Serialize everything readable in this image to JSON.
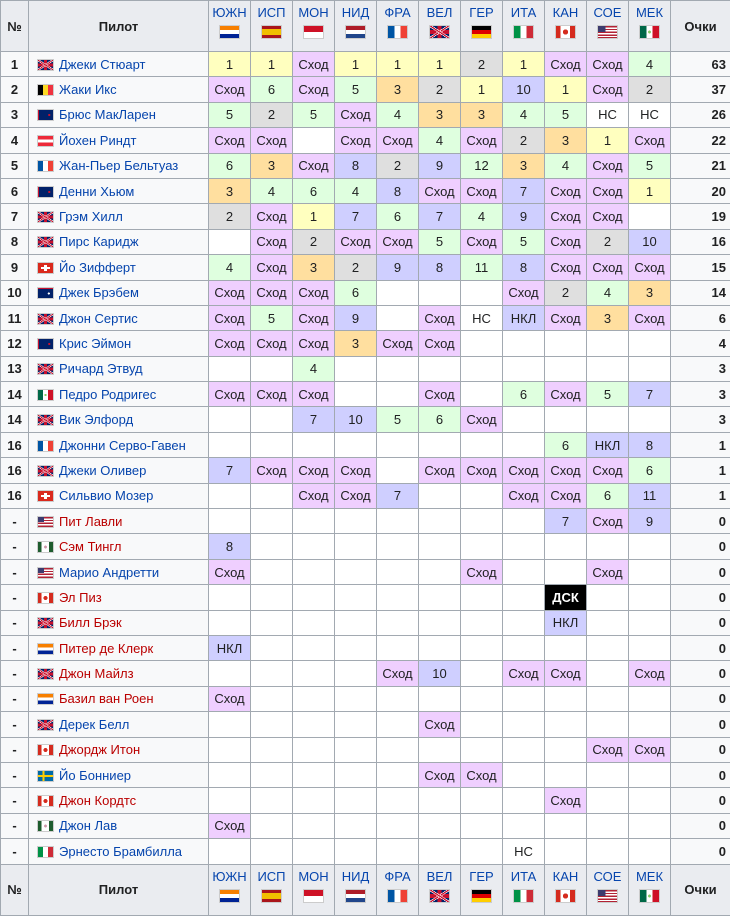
{
  "header": {
    "pos": "№",
    "driver": "Пилот",
    "points": "Очки",
    "races": [
      {
        "label": "ЮЖН",
        "flag": "za"
      },
      {
        "label": "ИСП",
        "flag": "es"
      },
      {
        "label": "МОН",
        "flag": "mc"
      },
      {
        "label": "НИД",
        "flag": "nl"
      },
      {
        "label": "ФРА",
        "flag": "fr"
      },
      {
        "label": "ВЕЛ",
        "flag": "gb"
      },
      {
        "label": "ГЕР",
        "flag": "de"
      },
      {
        "label": "ИТА",
        "flag": "it"
      },
      {
        "label": "КАН",
        "flag": "ca"
      },
      {
        "label": "СОЕ",
        "flag": "us"
      },
      {
        "label": "МЕК",
        "flag": "mx"
      }
    ]
  },
  "legend_colors": {
    "gold": "#ffffbf",
    "silver": "#dfdfdf",
    "bronze": "#ffdf9f",
    "points": "#dfffdf",
    "finished": "#cfcfff",
    "retired": "#efcfff",
    "dsq": "#000000"
  },
  "rows": [
    {
      "pos": "1",
      "name": "Джеки Стюарт",
      "flag": "gb",
      "link": "blue",
      "results": [
        "1",
        "1",
        "Сход",
        "1",
        "1",
        "1",
        "2",
        "1",
        "Сход",
        "Сход",
        "4"
      ],
      "points": "63"
    },
    {
      "pos": "2",
      "name": "Жаки Икс",
      "flag": "be",
      "link": "blue",
      "results": [
        "Сход",
        "6",
        "Сход",
        "5",
        "3",
        "2",
        "1",
        "10",
        "1",
        "Сход",
        "2"
      ],
      "points": "37"
    },
    {
      "pos": "3",
      "name": "Брюс МакЛарен",
      "flag": "nz",
      "link": "blue",
      "results": [
        "5",
        "2",
        "5",
        "Сход",
        "4",
        "3",
        "3",
        "4",
        "5",
        "НС",
        "НС"
      ],
      "points": "26"
    },
    {
      "pos": "4",
      "name": "Йохен Риндт",
      "flag": "at",
      "link": "blue",
      "results": [
        "Сход",
        "Сход",
        "",
        "Сход",
        "Сход",
        "4",
        "Сход",
        "2",
        "3",
        "1",
        "Сход"
      ],
      "points": "22"
    },
    {
      "pos": "5",
      "name": "Жан-Пьер Бельтуаз",
      "flag": "fr",
      "link": "blue",
      "results": [
        "6",
        "3",
        "Сход",
        "8",
        "2",
        "9",
        "12:g",
        "3",
        "4",
        "Сход",
        "5"
      ],
      "points": "21"
    },
    {
      "pos": "6",
      "name": "Денни Хьюм",
      "flag": "nz",
      "link": "blue",
      "results": [
        "3",
        "4",
        "6",
        "4",
        "8",
        "Сход",
        "Сход",
        "7",
        "Сход",
        "Сход",
        "1"
      ],
      "points": "20"
    },
    {
      "pos": "7",
      "name": "Грэм Хилл",
      "flag": "gb",
      "link": "blue",
      "results": [
        "2",
        "Сход",
        "1",
        "7",
        "6",
        "7",
        "4",
        "9",
        "Сход",
        "Сход",
        ""
      ],
      "points": "19"
    },
    {
      "pos": "8",
      "name": "Пирс Каридж",
      "flag": "gb",
      "link": "blue",
      "results": [
        "",
        "Сход",
        "2",
        "Сход",
        "Сход",
        "5",
        "Сход",
        "5",
        "Сход",
        "2",
        "10"
      ],
      "points": "16"
    },
    {
      "pos": "9",
      "name": "Йо Зифферт",
      "flag": "ch",
      "link": "blue",
      "results": [
        "4",
        "Сход",
        "3",
        "2",
        "9",
        "8",
        "11:g",
        "8",
        "Сход",
        "Сход",
        "Сход"
      ],
      "points": "15"
    },
    {
      "pos": "10",
      "name": "Джек Брэбем",
      "flag": "au",
      "link": "blue",
      "results": [
        "Сход",
        "Сход",
        "Сход",
        "6",
        "",
        "",
        "",
        "Сход",
        "2",
        "4",
        "3"
      ],
      "points": "14"
    },
    {
      "pos": "11",
      "name": "Джон Сертис",
      "flag": "gb",
      "link": "blue",
      "results": [
        "Сход",
        "5",
        "Сход",
        "9",
        "",
        "Сход",
        "НС",
        "НКЛ",
        "Сход",
        "3",
        "Сход"
      ],
      "points": "6"
    },
    {
      "pos": "12",
      "name": "Крис Эймон",
      "flag": "nz",
      "link": "blue",
      "results": [
        "Сход",
        "Сход",
        "Сход",
        "3",
        "Сход",
        "Сход",
        "",
        "",
        "",
        "",
        ""
      ],
      "points": "4"
    },
    {
      "pos": "13",
      "name": "Ричард Этвуд",
      "flag": "gb",
      "link": "blue",
      "results": [
        "",
        "",
        "4",
        "",
        "",
        "",
        "",
        "",
        "",
        "",
        ""
      ],
      "points": "3"
    },
    {
      "pos": "14",
      "name": "Педро Родригес",
      "flag": "mx",
      "link": "blue",
      "results": [
        "Сход",
        "Сход",
        "Сход",
        "",
        "",
        "Сход",
        "",
        "6",
        "Сход",
        "5",
        "7"
      ],
      "points": "3"
    },
    {
      "pos": "14",
      "name": "Вик Элфорд",
      "flag": "gb",
      "link": "blue",
      "results": [
        "",
        "",
        "7",
        "10",
        "5",
        "6",
        "Сход",
        "",
        "",
        "",
        ""
      ],
      "points": "3"
    },
    {
      "pos": "16",
      "name": "Джонни Серво-Гавен",
      "flag": "fr",
      "link": "blue",
      "results": [
        "",
        "",
        "",
        "",
        "",
        "",
        "",
        "",
        "6",
        "НКЛ",
        "8"
      ],
      "points": "1"
    },
    {
      "pos": "16",
      "name": "Джеки Оливер",
      "flag": "gb",
      "link": "blue",
      "results": [
        "7",
        "Сход",
        "Сход",
        "Сход",
        "",
        "Сход",
        "Сход",
        "Сход",
        "Сход",
        "Сход",
        "6"
      ],
      "points": "1"
    },
    {
      "pos": "16",
      "name": "Сильвио Мозер",
      "flag": "ch",
      "link": "blue",
      "results": [
        "",
        "",
        "Сход",
        "Сход",
        "7",
        "",
        "",
        "Сход",
        "Сход",
        "6",
        "11"
      ],
      "points": "1"
    },
    {
      "pos": "-",
      "name": "Пит Лавли",
      "flag": "us",
      "link": "red",
      "results": [
        "",
        "",
        "",
        "",
        "",
        "",
        "",
        "",
        "7",
        "Сход",
        "9"
      ],
      "points": "0"
    },
    {
      "pos": "-",
      "name": "Сэм Тингл",
      "flag": "rh",
      "link": "red",
      "results": [
        "8",
        "",
        "",
        "",
        "",
        "",
        "",
        "",
        "",
        "",
        ""
      ],
      "points": "0"
    },
    {
      "pos": "-",
      "name": "Марио Андретти",
      "flag": "us",
      "link": "blue",
      "results": [
        "Сход",
        "",
        "",
        "",
        "",
        "",
        "Сход",
        "",
        "",
        "Сход",
        ""
      ],
      "points": "0"
    },
    {
      "pos": "-",
      "name": "Эл Пиз",
      "flag": "ca",
      "link": "red",
      "results": [
        "",
        "",
        "",
        "",
        "",
        "",
        "",
        "",
        "ДСК",
        "",
        ""
      ],
      "points": "0"
    },
    {
      "pos": "-",
      "name": "Билл Брэк",
      "flag": "gb",
      "link": "red",
      "results": [
        "",
        "",
        "",
        "",
        "",
        "",
        "",
        "",
        "НКЛ",
        "",
        ""
      ],
      "points": "0"
    },
    {
      "pos": "-",
      "name": "Питер де Клерк",
      "flag": "za",
      "link": "red",
      "results": [
        "НКЛ",
        "",
        "",
        "",
        "",
        "",
        "",
        "",
        "",
        "",
        ""
      ],
      "points": "0"
    },
    {
      "pos": "-",
      "name": "Джон Майлз",
      "flag": "gb",
      "link": "red",
      "results": [
        "",
        "",
        "",
        "",
        "Сход",
        "10",
        "",
        "Сход",
        "Сход",
        "",
        "Сход"
      ],
      "points": "0"
    },
    {
      "pos": "-",
      "name": "Базил ван Роен",
      "flag": "za",
      "link": "red",
      "results": [
        "Сход",
        "",
        "",
        "",
        "",
        "",
        "",
        "",
        "",
        "",
        ""
      ],
      "points": "0"
    },
    {
      "pos": "-",
      "name": "Дерек Белл",
      "flag": "gb",
      "link": "blue",
      "results": [
        "",
        "",
        "",
        "",
        "",
        "Сход",
        "",
        "",
        "",
        "",
        ""
      ],
      "points": "0"
    },
    {
      "pos": "-",
      "name": "Джордж Итон",
      "flag": "ca",
      "link": "red",
      "results": [
        "",
        "",
        "",
        "",
        "",
        "",
        "",
        "",
        "",
        "Сход",
        "Сход"
      ],
      "points": "0"
    },
    {
      "pos": "-",
      "name": "Йо Бонниер",
      "flag": "se",
      "link": "blue",
      "results": [
        "",
        "",
        "",
        "",
        "",
        "Сход",
        "Сход",
        "",
        "",
        "",
        ""
      ],
      "points": "0"
    },
    {
      "pos": "-",
      "name": "Джон Кордтс",
      "flag": "ca",
      "link": "red",
      "results": [
        "",
        "",
        "",
        "",
        "",
        "",
        "",
        "",
        "Сход",
        "",
        ""
      ],
      "points": "0"
    },
    {
      "pos": "-",
      "name": "Джон Лав",
      "flag": "rh",
      "link": "blue",
      "results": [
        "Сход",
        "",
        "",
        "",
        "",
        "",
        "",
        "",
        "",
        "",
        ""
      ],
      "points": "0"
    },
    {
      "pos": "-",
      "name": "Эрнесто Брамбилла",
      "flag": "it",
      "link": "blue",
      "results": [
        "",
        "",
        "",
        "",
        "",
        "",
        "",
        "НС",
        "",
        "",
        ""
      ],
      "points": "0"
    }
  ]
}
